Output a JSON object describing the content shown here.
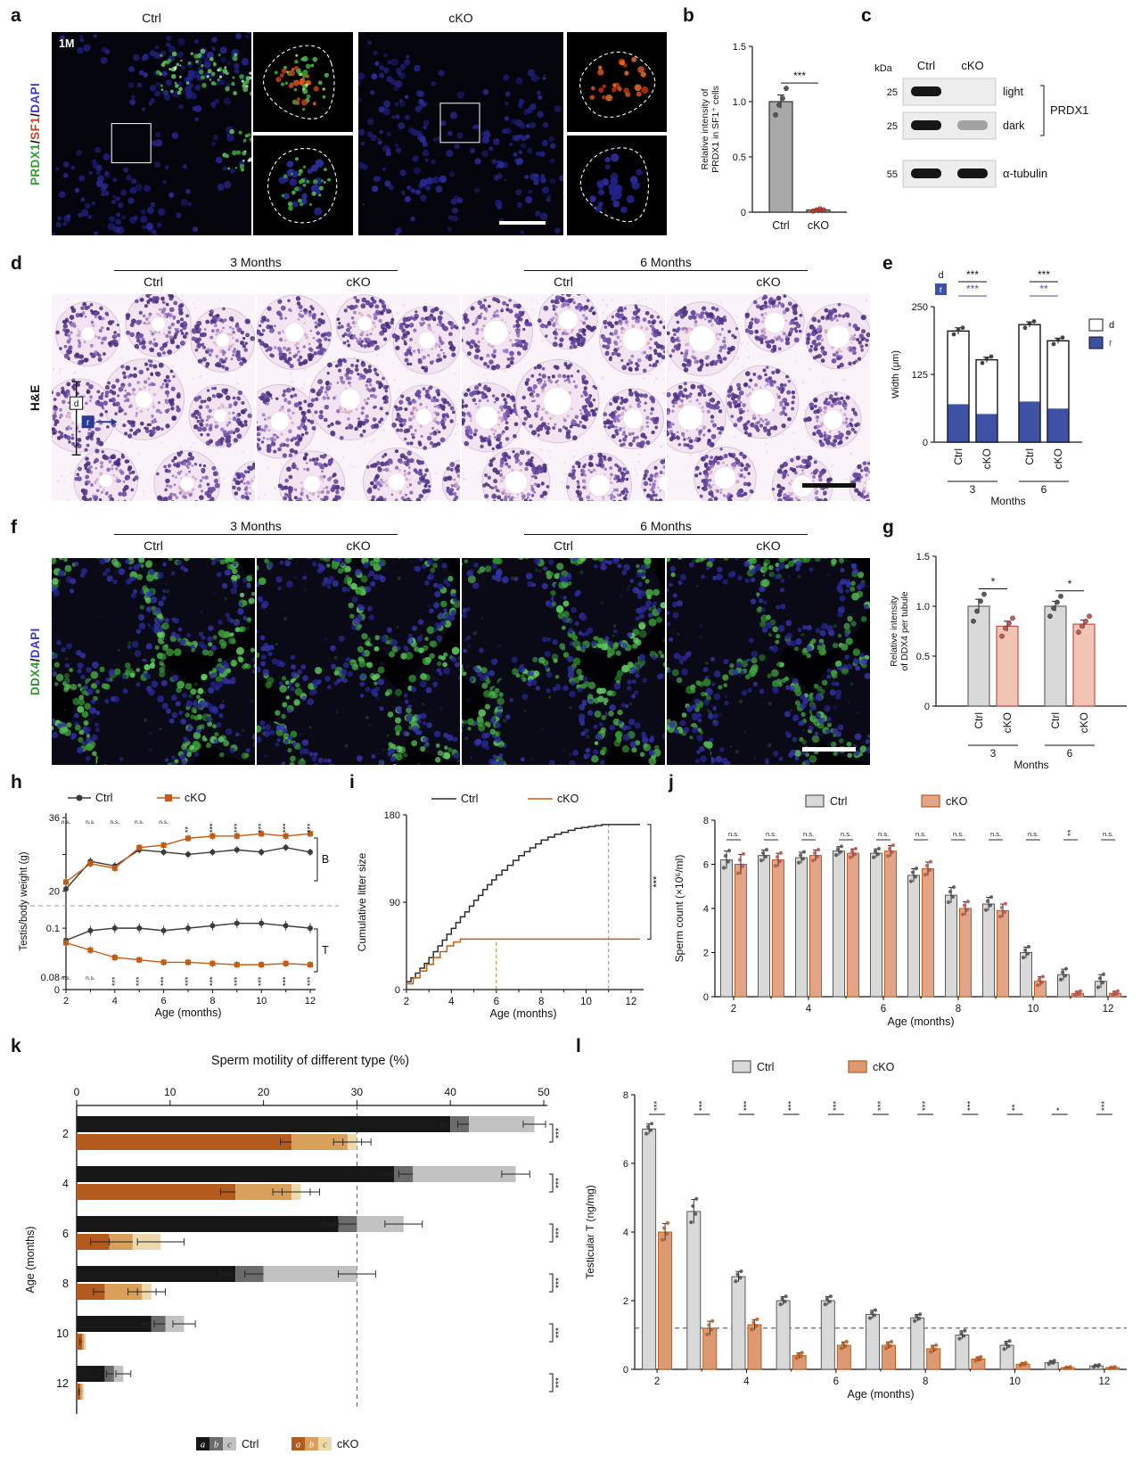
{
  "panels": {
    "a": {
      "letter": "a",
      "age_tag": "1M",
      "groups": [
        "Ctrl",
        "cKO"
      ],
      "side_label_parts": [
        {
          "text": "PRDX1",
          "color": "#2e9e2e"
        },
        {
          "text": "/",
          "color": "#111111"
        },
        {
          "text": "SF1",
          "color": "#d43b1f"
        },
        {
          "text": "/",
          "color": "#111111"
        },
        {
          "text": "DAPI",
          "color": "#3a3ad0"
        }
      ]
    },
    "b": {
      "letter": "b"
    },
    "c": {
      "letter": "c",
      "kda_label": "kDa",
      "lanes": [
        "Ctrl",
        "cKO"
      ],
      "rows": [
        {
          "kda": "25",
          "bands": [
            1,
            0
          ],
          "tag": "light"
        },
        {
          "kda": "25",
          "bands": [
            1,
            0.35
          ],
          "tag": "dark"
        },
        {
          "kda": "55",
          "bands": [
            1,
            1
          ],
          "tag": "α-tubulin"
        }
      ],
      "brace_label": "PRDX1"
    },
    "d": {
      "letter": "d",
      "side_label": "H&E",
      "time_groups": [
        "3 Months",
        "6 Months"
      ],
      "col_labels": [
        "Ctrl",
        "cKO",
        "Ctrl",
        "cKO"
      ],
      "annot": {
        "d_label": "d",
        "r_label": "r"
      }
    },
    "e": {
      "letter": "e"
    },
    "f": {
      "letter": "f",
      "time_groups": [
        "3 Months",
        "6 Months"
      ],
      "col_labels": [
        "Ctrl",
        "cKO",
        "Ctrl",
        "cKO"
      ],
      "side_label_parts": [
        {
          "text": "DDX4",
          "color": "#2e9e2e"
        },
        {
          "text": "/",
          "color": "#111111"
        },
        {
          "text": "DAPI",
          "color": "#3a3ad0"
        }
      ]
    },
    "g": {
      "letter": "g"
    },
    "h": {
      "letter": "h"
    },
    "i": {
      "letter": "i"
    },
    "j": {
      "letter": "j"
    },
    "k": {
      "letter": "k"
    },
    "l": {
      "letter": "l"
    }
  },
  "chart_data": [
    {
      "id": "chart-b",
      "type": "bar",
      "ylabel_lines": [
        "Relative intensity of",
        "PRDX1 in SF1⁺ cells"
      ],
      "categories": [
        "Ctrl",
        "cKO"
      ],
      "values": [
        1.0,
        0.02
      ],
      "errors": [
        0.06,
        0.01
      ],
      "points": [
        [
          0.88,
          0.97,
          1.03,
          1.12
        ],
        [
          0.01,
          0.02,
          0.03,
          0.02
        ]
      ],
      "bar_fill": [
        "#a8a8a8",
        "#a8a8a8"
      ],
      "bar_stroke": [
        "#333333",
        "#333333"
      ],
      "point_fill": [
        "#4d4d4d",
        "#c0392b"
      ],
      "ylim": [
        0,
        1.5
      ],
      "yticks": [
        "0",
        "0.5",
        "1.0",
        "1.5"
      ],
      "sig": [
        {
          "pair": [
            0,
            1
          ],
          "label": "***"
        }
      ]
    },
    {
      "id": "chart-e",
      "type": "stackbar",
      "ylabel": "Width (μm)",
      "categories": [
        "Ctrl",
        "cKO",
        "Ctrl",
        "cKO"
      ],
      "group_labels": [
        "3",
        "6"
      ],
      "group_axis_label": "Months",
      "total_values": [
        205,
        152,
        217,
        187
      ],
      "inner_values": [
        70,
        52,
        75,
        62
      ],
      "total_errors": [
        6,
        5,
        5,
        5
      ],
      "inner_color": "#3f51a5",
      "outer_color": "#ffffff",
      "legend": [
        {
          "label": "d",
          "color": "#ffffff"
        },
        {
          "label": "r",
          "color": "#3f51a5"
        }
      ],
      "ylim": [
        0,
        250
      ],
      "yticks": [
        "0",
        "125",
        "250"
      ],
      "sig_rows": [
        {
          "label": "d",
          "color": "#111111",
          "marks": [
            "***",
            "***"
          ]
        },
        {
          "label": "r",
          "color": "#3f51a5",
          "marks": [
            "***",
            "**"
          ]
        }
      ]
    },
    {
      "id": "chart-g",
      "type": "bar",
      "ylabel_lines": [
        "Relative intensity",
        "of DDX4 per tubule"
      ],
      "categories": [
        "Ctrl",
        "cKO",
        "Ctrl",
        "cKO"
      ],
      "group_labels": [
        "3",
        "6"
      ],
      "group_axis_label": "Months",
      "values": [
        1.0,
        0.8,
        1.0,
        0.82
      ],
      "errors": [
        0.07,
        0.05,
        0.05,
        0.04
      ],
      "points": [
        [
          0.85,
          0.95,
          1.05,
          1.12
        ],
        [
          0.7,
          0.78,
          0.83,
          0.88
        ],
        [
          0.9,
          0.98,
          1.04,
          1.1
        ],
        [
          0.74,
          0.8,
          0.85,
          0.9
        ]
      ],
      "bar_fill": [
        "#d9d9d9",
        "#f2c4b4",
        "#d9d9d9",
        "#f2c4b4"
      ],
      "bar_stroke": [
        "#666666",
        "#c0504d",
        "#666666",
        "#c0504d"
      ],
      "point_fill": [
        "#4d4d4d",
        "#c0504d",
        "#4d4d4d",
        "#c0504d"
      ],
      "ylim": [
        0,
        1.5
      ],
      "yticks": [
        "0",
        "0.5",
        "1.0",
        "1.5"
      ],
      "sig": [
        {
          "pair": [
            0,
            1
          ],
          "label": "*"
        },
        {
          "pair": [
            2,
            3
          ],
          "label": "*"
        }
      ]
    },
    {
      "id": "chart-h",
      "type": "dual_line",
      "ylabel": "Testis/body weight (g)",
      "xlabel": "Age (months)",
      "x": [
        2,
        3,
        4,
        5,
        6,
        7,
        8,
        9,
        10,
        11,
        12
      ],
      "legend": [
        {
          "name": "Ctrl",
          "color": "#3b3b3b",
          "marker": "circle"
        },
        {
          "name": "cKO",
          "color": "#c55a11",
          "marker": "square"
        }
      ],
      "top": {
        "right_label": "B",
        "ylim": [
          18,
          37
        ],
        "yticks": [
          "36",
          "20"
        ],
        "series": [
          {
            "name": "Ctrl",
            "values": [
              20.5,
              26.5,
              25.5,
              29,
              28.5,
              28,
              28.5,
              29,
              28.5,
              29.5,
              28.5
            ],
            "errors": [
              0.8,
              0.8,
              0.8,
              0.8,
              0.8,
              0.8,
              0.8,
              0.8,
              0.8,
              0.8,
              0.8
            ]
          },
          {
            "name": "cKO",
            "values": [
              22,
              26,
              25,
              29.5,
              30,
              31.5,
              32,
              32,
              32.5,
              32,
              32.5
            ],
            "errors": [
              0.8,
              0.8,
              0.8,
              0.8,
              0.8,
              0.8,
              0.8,
              0.8,
              0.8,
              0.8,
              0.8
            ]
          }
        ],
        "sig": [
          "n.s.",
          "n.s.",
          "n.s.",
          "n.s.",
          "n.s.",
          "**",
          "***",
          "***",
          "***",
          "***",
          "***"
        ]
      },
      "bottom": {
        "right_label": "T",
        "ylim": [
          0.077,
          0.107
        ],
        "yticks": [
          "0.1",
          "0.08",
          "0"
        ],
        "series": [
          {
            "name": "Ctrl",
            "values": [
              0.095,
              0.099,
              0.1,
              0.1,
              0.099,
              0.1,
              0.101,
              0.102,
              0.102,
              0.101,
              0.1
            ],
            "errors": [
              0.002,
              0.002,
              0.002,
              0.002,
              0.002,
              0.002,
              0.002,
              0.002,
              0.002,
              0.002,
              0.002
            ]
          },
          {
            "name": "cKO",
            "values": [
              0.094,
              0.091,
              0.088,
              0.087,
              0.086,
              0.086,
              0.0855,
              0.085,
              0.085,
              0.0855,
              0.085
            ],
            "errors": [
              0.0015,
              0.0015,
              0.0015,
              0.0015,
              0.0015,
              0.0015,
              0.0015,
              0.0015,
              0.0015,
              0.0015,
              0.0015
            ]
          }
        ],
        "sig": [
          "n.s.",
          "n.s.",
          "***",
          "***",
          "***",
          "***",
          "***",
          "***",
          "***",
          "***",
          "***"
        ]
      }
    },
    {
      "id": "chart-i",
      "type": "step",
      "ylabel": "Cumulative litter size",
      "xlabel": "Age (months)",
      "ylim": [
        0,
        180
      ],
      "yticks": [
        "0",
        "90",
        "180"
      ],
      "xlim": [
        2,
        12.4
      ],
      "xticks": [
        2,
        4,
        6,
        8,
        10,
        12
      ],
      "series": [
        {
          "name": "Ctrl",
          "color": "#2b2b2b",
          "x": [
            2,
            2.2,
            2.4,
            2.6,
            2.8,
            3,
            3.2,
            3.4,
            3.6,
            3.8,
            4,
            4.2,
            4.4,
            4.6,
            4.8,
            5,
            5.2,
            5.4,
            5.6,
            5.8,
            6,
            6.25,
            6.5,
            6.75,
            7,
            7.25,
            7.5,
            7.75,
            8,
            8.3,
            8.6,
            8.9,
            9.2,
            9.5,
            9.8,
            10.1,
            10.4,
            10.7,
            11,
            12.4
          ],
          "y": [
            8,
            12,
            17,
            22,
            27,
            33,
            39,
            45,
            51,
            57,
            63,
            69,
            75,
            80,
            86,
            92,
            97,
            103,
            108,
            113,
            118,
            123,
            128,
            133,
            138,
            142,
            146,
            150,
            154,
            157,
            160,
            162,
            164,
            166,
            167,
            168,
            169,
            170,
            170,
            170
          ]
        },
        {
          "name": "cKO",
          "color": "#c55a11",
          "x": [
            2,
            2.3,
            2.6,
            2.9,
            3.2,
            3.5,
            3.8,
            4.1,
            4.4,
            12.4
          ],
          "y": [
            6,
            12,
            19,
            26,
            33,
            39,
            45,
            49,
            52,
            52
          ]
        }
      ],
      "vlines": [
        {
          "x": 6,
          "y": 52,
          "color": "#cd8a2e"
        },
        {
          "x": 11,
          "y": 170,
          "color": "#999999"
        }
      ],
      "sig": "***"
    },
    {
      "id": "chart-j",
      "type": "group_bar",
      "ylabel": "Sperm count (×10⁶/ml)",
      "xlabel": "Age (months)",
      "categories": [
        "2",
        "3",
        "4",
        "5",
        "6",
        "7",
        "8",
        "9",
        "10",
        "11",
        "12"
      ],
      "xtick_show": [
        "2",
        "4",
        "6",
        "8",
        "10",
        "12"
      ],
      "series": [
        {
          "name": "Ctrl",
          "fill": "#d9d9d9",
          "stroke": "#595959",
          "point": "#4d4d4d",
          "values": [
            6.2,
            6.4,
            6.3,
            6.6,
            6.5,
            5.5,
            4.6,
            4.2,
            2.0,
            1.0,
            0.7
          ],
          "errors": [
            0.4,
            0.25,
            0.25,
            0.2,
            0.2,
            0.3,
            0.35,
            0.3,
            0.25,
            0.25,
            0.3
          ]
        },
        {
          "name": "cKO",
          "fill": "#e3a587",
          "stroke": "#b85c1e",
          "point": "#c0504d",
          "values": [
            6.0,
            6.2,
            6.4,
            6.5,
            6.6,
            5.8,
            4.0,
            3.9,
            0.7,
            0.15,
            0.15
          ],
          "errors": [
            0.45,
            0.3,
            0.25,
            0.2,
            0.25,
            0.3,
            0.3,
            0.3,
            0.2,
            0.1,
            0.1
          ]
        }
      ],
      "ylim": [
        0,
        8
      ],
      "yticks": [
        "0",
        "2",
        "4",
        "6",
        "8"
      ],
      "sig": [
        "n.s.",
        "n.s.",
        "n.s.",
        "n.s.",
        "n.s.",
        "n.s.",
        "n.s.",
        "n.s.",
        "n.s.",
        "**",
        "n.s."
      ]
    },
    {
      "id": "chart-k",
      "type": "hstack",
      "title": "Sperm motility of different type (%)",
      "ylabel": "Age (months)",
      "xlim": [
        0,
        50
      ],
      "xticks": [
        "0",
        "10",
        "20",
        "30",
        "40",
        "50"
      ],
      "age_labels": [
        "2",
        "4",
        "6",
        "8",
        "10",
        "12"
      ],
      "ctrl_colors": [
        "#171717",
        "#6b6b6b",
        "#c2c2c2"
      ],
      "cko_colors": [
        "#b35a1f",
        "#d9a05c",
        "#ecd9ae"
      ],
      "ctrl_segments": [
        [
          40,
          2,
          7
        ],
        [
          34,
          2,
          11
        ],
        [
          28,
          2,
          5
        ],
        [
          17,
          3,
          10
        ],
        [
          8,
          1.5,
          2
        ],
        [
          3,
          1,
          1
        ]
      ],
      "cko_segments": [
        [
          23,
          6,
          1
        ],
        [
          17,
          6,
          1
        ],
        [
          3.5,
          2.5,
          3
        ],
        [
          3,
          4,
          1
        ],
        [
          0.6,
          0.2,
          0.2
        ],
        [
          0.4,
          0.2,
          0.2
        ]
      ],
      "ctrl_errors": [
        1.2,
        1.5,
        2.0,
        2.0,
        1.2,
        0.8
      ],
      "cko_errors": [
        1.5,
        2.0,
        2.5,
        1.5,
        0.3,
        0.2
      ],
      "dash_x": 30,
      "sig": [
        "***",
        "***",
        "***",
        "***",
        "***",
        "***"
      ],
      "legend": [
        {
          "name": "Ctrl",
          "letters": [
            "a",
            "b",
            "c"
          ],
          "colors": [
            "#171717",
            "#6b6b6b",
            "#c2c2c2"
          ],
          "text_colors": [
            "#ffffff",
            "#ffffff",
            "#333333"
          ]
        },
        {
          "name": "cKO",
          "letters": [
            "a",
            "b",
            "c"
          ],
          "colors": [
            "#b35a1f",
            "#d9a05c",
            "#ecd9ae"
          ],
          "text_colors": [
            "#ffffff",
            "#ffffff",
            "#8a6a30"
          ]
        }
      ]
    },
    {
      "id": "chart-l",
      "type": "group_bar",
      "ylabel": "Testicular T (ng/mg)",
      "xlabel": "Age (months)",
      "categories": [
        "2",
        "3",
        "4",
        "5",
        "6",
        "7",
        "8",
        "9",
        "10",
        "11",
        "12"
      ],
      "xtick_show": [
        "2",
        "4",
        "6",
        "8",
        "10",
        "12"
      ],
      "series": [
        {
          "name": "Ctrl",
          "fill": "#d9d9d9",
          "stroke": "#595959",
          "point": "#4d4d4d",
          "values": [
            7.0,
            4.6,
            2.7,
            2.0,
            2.0,
            1.6,
            1.5,
            1.0,
            0.7,
            0.2,
            0.1
          ],
          "errors": [
            0.15,
            0.35,
            0.15,
            0.12,
            0.12,
            0.12,
            0.1,
            0.12,
            0.12,
            0.05,
            0.03
          ]
        },
        {
          "name": "cKO",
          "fill": "#dd9a72",
          "stroke": "#b85c1e",
          "point": "#b85c1e",
          "values": [
            4.0,
            1.2,
            1.3,
            0.4,
            0.7,
            0.7,
            0.6,
            0.3,
            0.15,
            0.05,
            0.05
          ],
          "errors": [
            0.25,
            0.2,
            0.15,
            0.08,
            0.1,
            0.1,
            0.1,
            0.06,
            0.04,
            0.02,
            0.02
          ]
        }
      ],
      "ylim": [
        0,
        8
      ],
      "yticks": [
        "0",
        "2",
        "4",
        "6",
        "8"
      ],
      "hline": 1.2,
      "sig": [
        "***",
        "***",
        "***",
        "***",
        "***",
        "***",
        "***",
        "***",
        "**",
        "*",
        "***"
      ]
    }
  ]
}
